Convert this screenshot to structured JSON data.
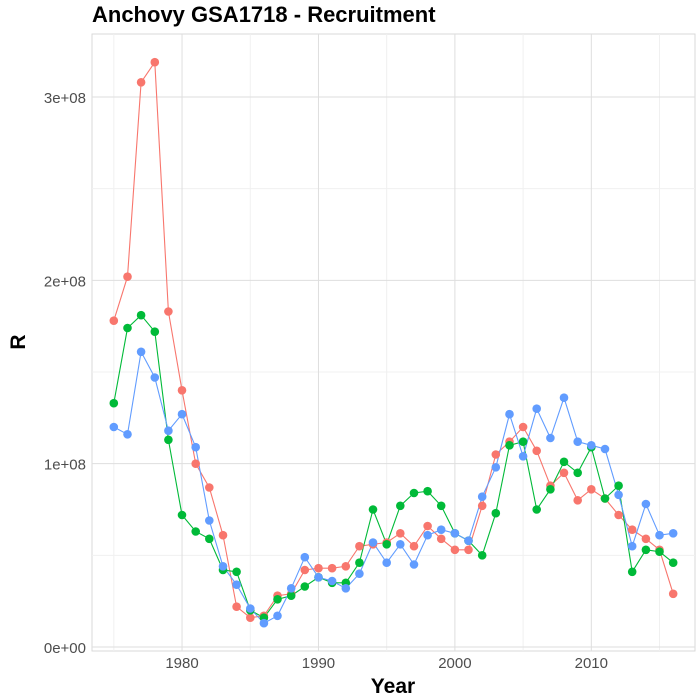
{
  "chart_data": {
    "type": "line",
    "title": "Anchovy GSA1718 - Recruitment",
    "xlabel": "Year",
    "ylabel": "R",
    "xlim": [
      1973.5,
      1977.5
    ],
    "ylim": [
      0,
      330000000
    ],
    "x_ticks": [
      {
        "value": 1980,
        "label": "1980"
      },
      {
        "value": 1990,
        "label": "1990"
      },
      {
        "value": 2000,
        "label": "2000"
      },
      {
        "value": 2010,
        "label": "2010"
      }
    ],
    "y_ticks": [
      {
        "value": 0,
        "label": "0e+00"
      },
      {
        "value": 100000000,
        "label": "1e+08"
      },
      {
        "value": 200000000,
        "label": "2e+08"
      },
      {
        "value": 300000000,
        "label": "3e+08"
      }
    ],
    "grid": true,
    "legend": "none",
    "x": [
      1975,
      1976,
      1977,
      1978,
      1979,
      1980,
      1981,
      1982,
      1983,
      1984,
      1985,
      1986,
      1987,
      1988,
      1989,
      1990,
      1991,
      1992,
      1993,
      1994,
      1995,
      1996,
      1997,
      1998,
      1999,
      2000,
      2001,
      2002,
      2003,
      2004,
      2005,
      2006,
      2007,
      2008,
      2009,
      2010,
      2011,
      2012,
      2013,
      2014,
      2015,
      2016
    ],
    "series": [
      {
        "color": "#F8766D",
        "values": [
          178000000,
          202000000,
          308000000,
          319000000,
          183000000,
          140000000,
          100000000,
          87000000,
          61000000,
          22000000,
          16000000,
          17000000,
          28000000,
          29000000,
          42000000,
          43000000,
          43000000,
          44000000,
          55000000,
          56000000,
          57000000,
          62000000,
          55000000,
          66000000,
          59000000,
          53000000,
          53000000,
          77000000,
          105000000,
          112000000,
          120000000,
          107000000,
          88000000,
          95000000,
          80000000,
          86000000,
          81000000,
          72000000,
          64000000,
          59000000,
          53000000,
          29000000
        ]
      },
      {
        "color": "#00BA38",
        "values": [
          133000000,
          174000000,
          181000000,
          172000000,
          113000000,
          72000000,
          63000000,
          59000000,
          42000000,
          41000000,
          20000000,
          16000000,
          26000000,
          28000000,
          33000000,
          38000000,
          35000000,
          35000000,
          46000000,
          75000000,
          56000000,
          77000000,
          84000000,
          85000000,
          77000000,
          62000000,
          58000000,
          50000000,
          73000000,
          110000000,
          112000000,
          75000000,
          86000000,
          101000000,
          95000000,
          109000000,
          81000000,
          88000000,
          41000000,
          53000000,
          52000000,
          46000000
        ]
      },
      {
        "color": "#619CFF",
        "values": [
          120000000,
          116000000,
          161000000,
          147000000,
          118000000,
          127000000,
          109000000,
          69000000,
          44000000,
          34000000,
          21000000,
          13000000,
          17000000,
          32000000,
          49000000,
          38000000,
          36000000,
          32000000,
          40000000,
          57000000,
          46000000,
          56000000,
          45000000,
          61000000,
          64000000,
          62000000,
          58000000,
          82000000,
          98000000,
          127000000,
          104000000,
          130000000,
          114000000,
          136000000,
          112000000,
          110000000,
          108000000,
          83000000,
          55000000,
          78000000,
          61000000,
          62000000
        ]
      }
    ]
  }
}
